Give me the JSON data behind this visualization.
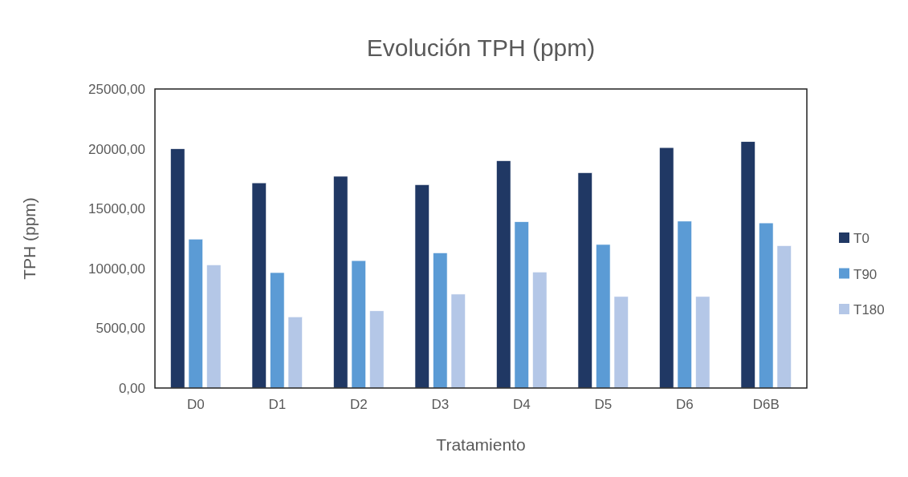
{
  "chart_data": {
    "type": "bar",
    "title": "Evolución TPH (ppm)",
    "xlabel": "Tratamiento",
    "ylabel": "TPH (ppm)",
    "categories": [
      "D0",
      "D1",
      "D2",
      "D3",
      "D4",
      "D5",
      "D6",
      "D6B"
    ],
    "series": [
      {
        "name": "T0",
        "color": "#203864",
        "values": [
          20000,
          17150,
          17700,
          17000,
          19000,
          18000,
          20100,
          20600
        ]
      },
      {
        "name": "T90",
        "color": "#5b9bd5",
        "values": [
          12450,
          9650,
          10650,
          11300,
          13900,
          12000,
          13950,
          13800
        ]
      },
      {
        "name": "T180",
        "color": "#b4c7e7",
        "values": [
          10300,
          5950,
          6450,
          7850,
          9700,
          7650,
          7650,
          11900
        ]
      }
    ],
    "ylim": [
      0,
      25000
    ],
    "yticks": [
      {
        "value": 0,
        "label": "0,00"
      },
      {
        "value": 5000,
        "label": "5000,00"
      },
      {
        "value": 10000,
        "label": "10000,00"
      },
      {
        "value": 15000,
        "label": "15000,00"
      },
      {
        "value": 20000,
        "label": "20000,00"
      },
      {
        "value": 25000,
        "label": "25000,00"
      }
    ],
    "grid": false,
    "legend": "right"
  }
}
